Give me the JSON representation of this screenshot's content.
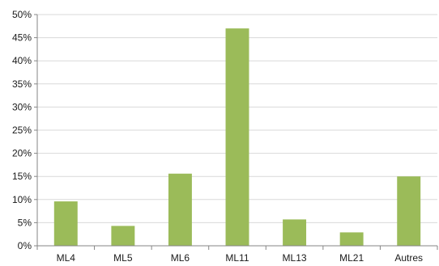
{
  "chart_data": {
    "type": "bar",
    "categories": [
      "ML4",
      "ML5",
      "ML6",
      "ML11",
      "ML13",
      "ML21",
      "Autres"
    ],
    "values": [
      9.6,
      4.3,
      15.6,
      47.0,
      5.7,
      2.9,
      15.0
    ],
    "yticks": [
      "0%",
      "5%",
      "10%",
      "15%",
      "20%",
      "25%",
      "30%",
      "35%",
      "40%",
      "45%",
      "50%"
    ],
    "ylim": [
      0,
      50
    ],
    "grid": true,
    "title": "",
    "xlabel": "",
    "ylabel": "",
    "bar_color": "#9bbb59",
    "grid_color": "#d9d9d9",
    "axis_color": "#868686"
  }
}
